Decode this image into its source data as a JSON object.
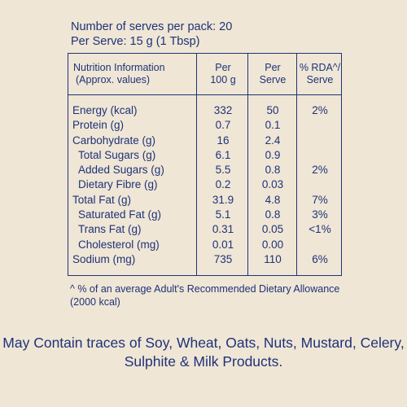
{
  "serves": {
    "per_pack": "Number of serves per pack: 20",
    "per_serve": "Per Serve: 15 g (1 Tbsp)"
  },
  "table": {
    "headers": {
      "info_line1": "Nutrition Information",
      "info_line2": "(Approx. values)",
      "per100_line1": "Per",
      "per100_line2": "100 g",
      "serve_line1": "Per",
      "serve_line2": "Serve",
      "rda_line1": "% RDA^/",
      "rda_line2": "Serve"
    },
    "rows": [
      {
        "label": "Energy (kcal)",
        "per100": "332",
        "serve": "50",
        "rda": "2%"
      },
      {
        "label": "Protein (g)",
        "per100": "0.7",
        "serve": "0.1",
        "rda": ""
      },
      {
        "label": "Carbohydrate (g)",
        "per100": "16",
        "serve": "2.4",
        "rda": ""
      },
      {
        "label": "Total Sugars (g)",
        "per100": "6.1",
        "serve": "0.9",
        "rda": ""
      },
      {
        "label": "Added Sugars (g)",
        "per100": "5.5",
        "serve": "0.8",
        "rda": "2%"
      },
      {
        "label": "Dietary Fibre (g)",
        "per100": "0.2",
        "serve": "0.03",
        "rda": ""
      },
      {
        "label": "Total Fat (g)",
        "per100": "31.9",
        "serve": "4.8",
        "rda": "7%"
      },
      {
        "label": "Saturated Fat (g)",
        "per100": "5.1",
        "serve": "0.8",
        "rda": "3%"
      },
      {
        "label": "Trans Fat (g)",
        "per100": "0.31",
        "serve": "0.05",
        "rda": "<1%"
      },
      {
        "label": "Cholesterol (mg)",
        "per100": "0.01",
        "serve": "0.00",
        "rda": ""
      },
      {
        "label": "Sodium (mg)",
        "per100": "735",
        "serve": "110",
        "rda": "6%"
      }
    ]
  },
  "footnote": {
    "line1": "^ % of an average Adult's Recommended Dietary Allowance",
    "line2": "(2000 kcal)"
  },
  "allergen": {
    "line1": "May Contain traces of Soy, Wheat, Oats, Nuts, Mustard, Celery,",
    "line2": "Sulphite & Milk Products."
  }
}
